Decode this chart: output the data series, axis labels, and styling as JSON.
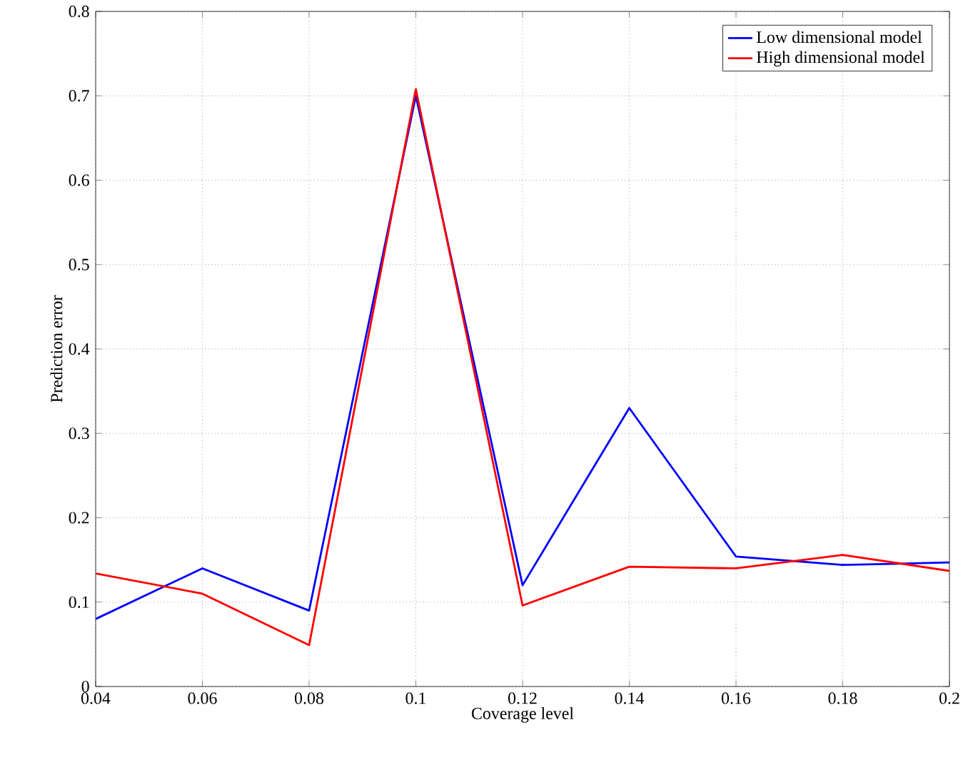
{
  "chart_data": {
    "type": "line",
    "xlabel": "Coverage level",
    "ylabel": "Prediction error",
    "x": [
      0.04,
      0.06,
      0.08,
      0.1,
      0.12,
      0.14,
      0.16,
      0.18,
      0.2
    ],
    "series": [
      {
        "name": "Low dimensional model",
        "color": "#0000ff",
        "values": [
          0.08,
          0.14,
          0.09,
          0.7,
          0.12,
          0.33,
          0.154,
          0.144,
          0.147
        ]
      },
      {
        "name": "High dimensional model",
        "color": "#ff0000",
        "values": [
          0.134,
          0.11,
          0.049,
          0.708,
          0.096,
          0.142,
          0.14,
          0.156,
          0.137
        ]
      }
    ],
    "xlim": [
      0.04,
      0.2
    ],
    "ylim": [
      0,
      0.8
    ],
    "xticks": [
      0.04,
      0.06,
      0.08,
      0.1,
      0.12,
      0.14,
      0.16,
      0.18,
      0.2
    ],
    "yticks": [
      0,
      0.1,
      0.2,
      0.3,
      0.4,
      0.5,
      0.6,
      0.7,
      0.8
    ],
    "grid": true,
    "legend": "top right",
    "line_style": "solid",
    "marker": "none"
  }
}
